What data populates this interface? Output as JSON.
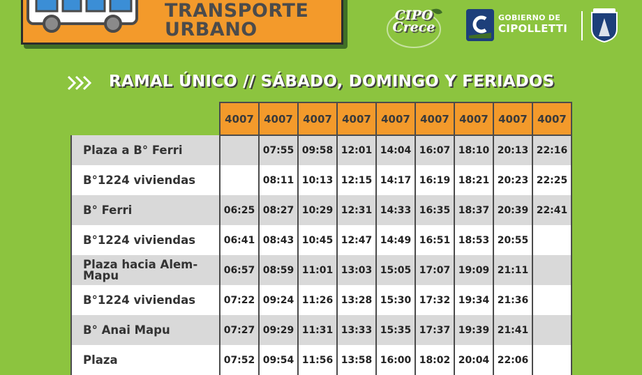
{
  "header": {
    "title_line1": "TRANSPORTE",
    "title_line2": "URBANO",
    "brand_color": "#f39a2b",
    "background_color": "#8cc43f"
  },
  "logos": {
    "cipo_line1": "CIPO",
    "cipo_line2": "Crece",
    "gobierno_line1": "GOBIERNO DE",
    "gobierno_line2": "CIPOLLETTI"
  },
  "subtitle": "RAMAL ÚNICO // SÁBADO, DOMINGO Y FERIADOS",
  "table": {
    "columns": [
      "4007",
      "4007",
      "4007",
      "4007",
      "4007",
      "4007",
      "4007",
      "4007",
      "4007"
    ],
    "rows": [
      {
        "stop": "Plaza a B° Ferri",
        "times": [
          "",
          "07:55",
          "09:58",
          "12:01",
          "14:04",
          "16:07",
          "18:10",
          "20:13",
          "22:16"
        ]
      },
      {
        "stop": "B°1224 viviendas",
        "times": [
          "",
          "08:11",
          "10:13",
          "12:15",
          "14:17",
          "16:19",
          "18:21",
          "20:23",
          "22:25"
        ]
      },
      {
        "stop": "B° Ferri",
        "times": [
          "06:25",
          "08:27",
          "10:29",
          "12:31",
          "14:33",
          "16:35",
          "18:37",
          "20:39",
          "22:41"
        ]
      },
      {
        "stop": "B°1224 viviendas",
        "times": [
          "06:41",
          "08:43",
          "10:45",
          "12:47",
          "14:49",
          "16:51",
          "18:53",
          "20:55",
          ""
        ]
      },
      {
        "stop": "Plaza hacia Alem-Mapu",
        "times": [
          "06:57",
          "08:59",
          "11:01",
          "13:03",
          "15:05",
          "17:07",
          "19:09",
          "21:11",
          ""
        ]
      },
      {
        "stop": "B°1224 viviendas",
        "times": [
          "07:22",
          "09:24",
          "11:26",
          "13:28",
          "15:30",
          "17:32",
          "19:34",
          "21:36",
          ""
        ]
      },
      {
        "stop": "B° Anai Mapu",
        "times": [
          "07:27",
          "09:29",
          "11:31",
          "13:33",
          "15:35",
          "17:37",
          "19:39",
          "21:41",
          ""
        ]
      },
      {
        "stop": "Plaza",
        "times": [
          "07:52",
          "09:54",
          "11:56",
          "13:58",
          "16:00",
          "18:02",
          "20:04",
          "22:06",
          ""
        ]
      }
    ]
  }
}
